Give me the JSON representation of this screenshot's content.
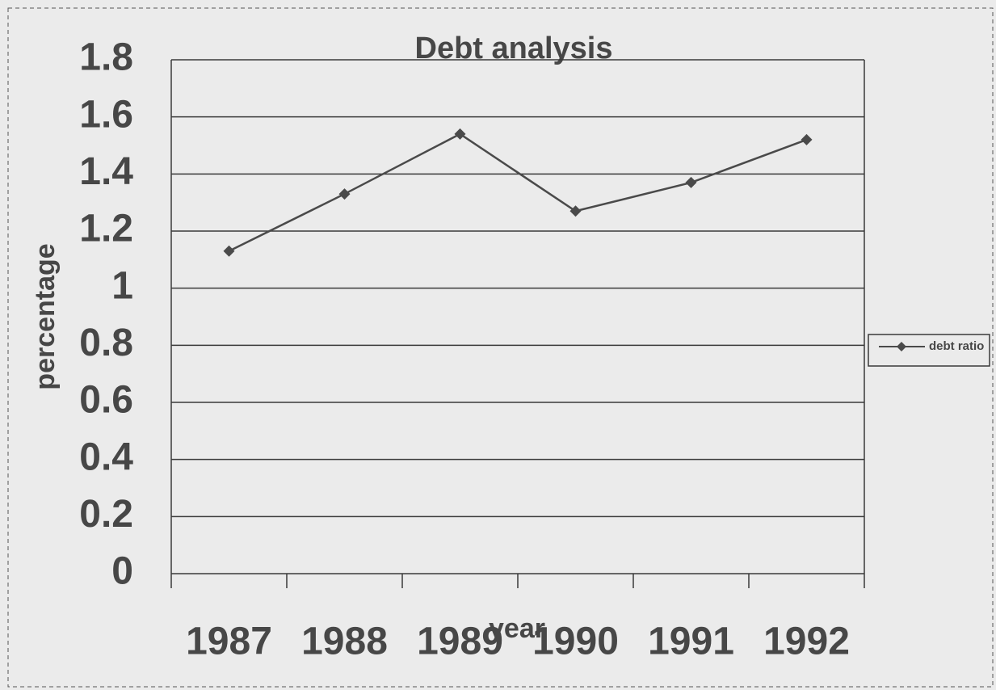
{
  "chart_data": {
    "type": "line",
    "title": "Debt analysis",
    "x_label": "year",
    "y_label": "percentage",
    "categories": [
      "1987",
      "1988",
      "1989",
      "1990",
      "1991",
      "1992"
    ],
    "series": [
      {
        "name": "debt ratio",
        "color": "#4a4a4a",
        "values": [
          1.13,
          1.33,
          1.54,
          1.27,
          1.37,
          1.52
        ]
      }
    ],
    "ylim": [
      0,
      1.8
    ],
    "yticks": [
      0,
      0.2,
      0.4,
      0.6,
      0.8,
      1,
      1.2,
      1.4,
      1.6,
      1.8
    ],
    "grid": true,
    "legend": "right"
  }
}
